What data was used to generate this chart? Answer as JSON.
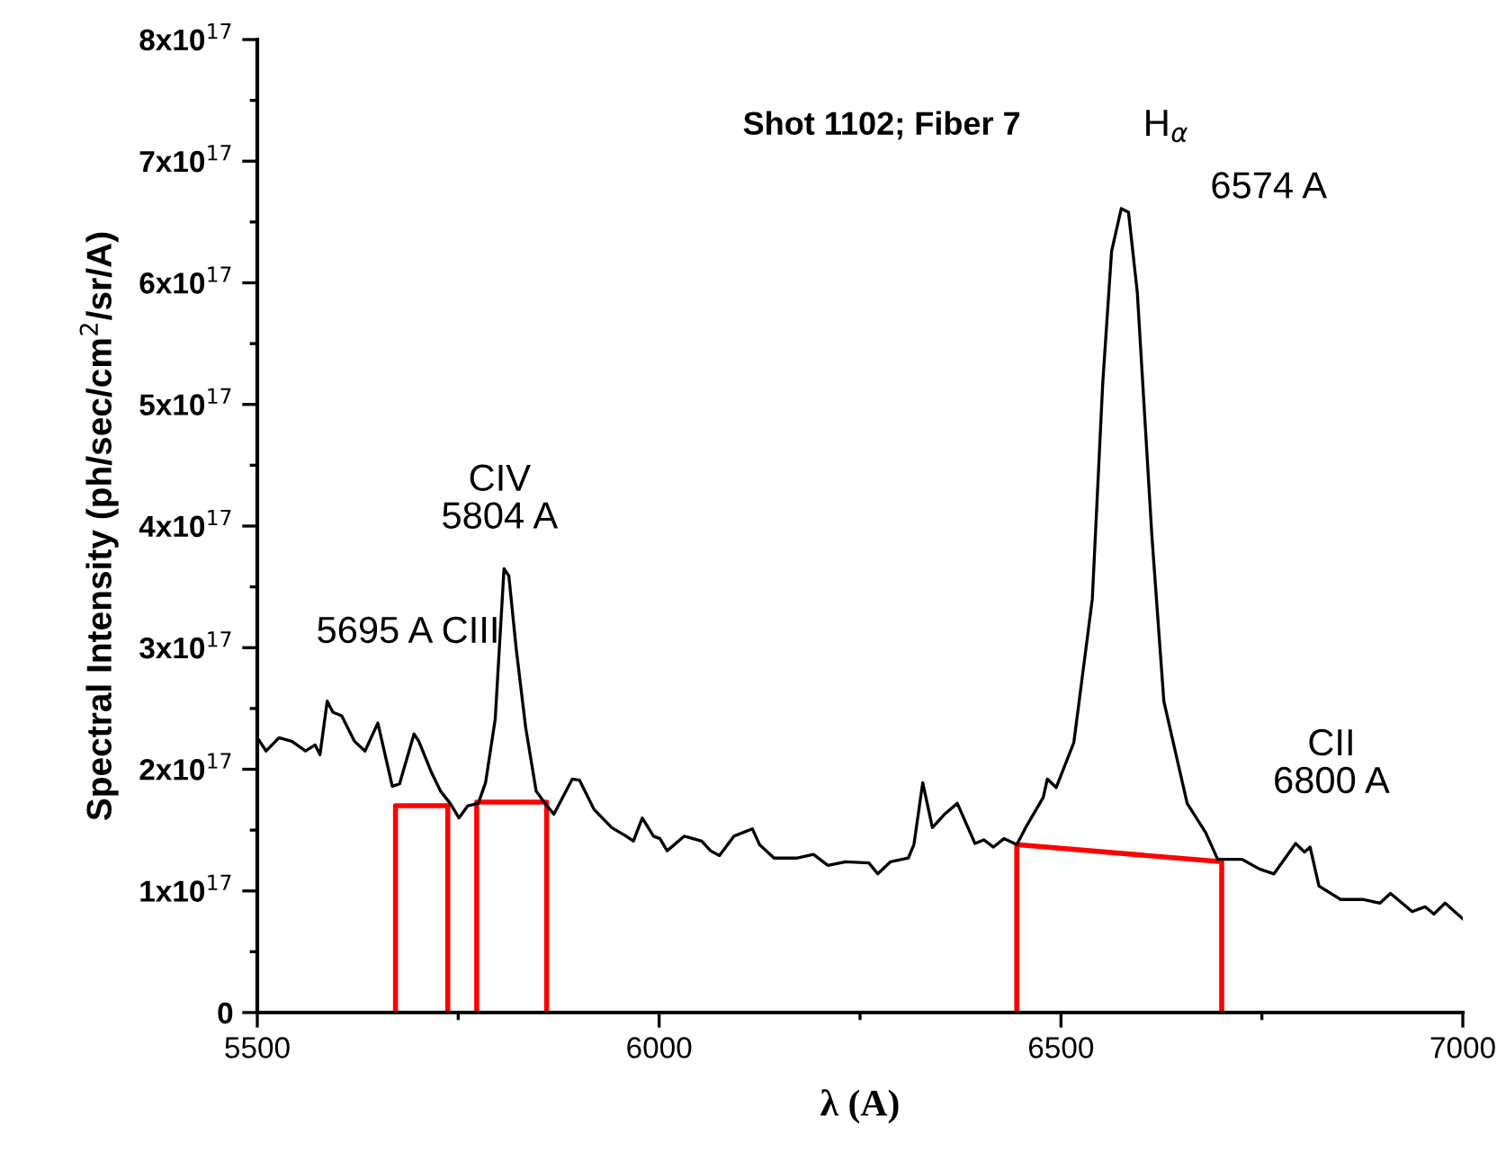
{
  "chart_data": {
    "type": "line",
    "xlabel": "λ (A)",
    "ylabel": "Spectral Intensity (ph/sec/cm$^{2}$/sr/A)",
    "xlim": [
      5500,
      7000
    ],
    "ylim": [
      0,
      8e+17
    ],
    "xticks": [
      5500,
      {
        "value": 5750,
        "label": null
      },
      6000,
      {
        "value": 6250,
        "label": null
      },
      6500,
      {
        "value": 6750,
        "label": null
      },
      7000
    ],
    "yticks": [
      0,
      {
        "value": 5e+16,
        "label": null
      },
      {
        "value": 1e+17,
        "label": "1x10$^{17}$"
      },
      {
        "value": 1.5e+17,
        "label": null
      },
      {
        "value": 2e+17,
        "label": "2x10$^{17}$"
      },
      {
        "value": 2.5e+17,
        "label": null
      },
      {
        "value": 3e+17,
        "label": "3x10$^{17}$"
      },
      {
        "value": 3.5e+17,
        "label": null
      },
      {
        "value": 4e+17,
        "label": "4x10$^{17}$"
      },
      {
        "value": 4.5e+17,
        "label": null
      },
      {
        "value": 5e+17,
        "label": "5x10$^{17}$"
      },
      {
        "value": 5.5e+17,
        "label": null
      },
      {
        "value": 6e+17,
        "label": "6x10$^{17}$"
      },
      {
        "value": 6.5e+17,
        "label": null
      },
      {
        "value": 7e+17,
        "label": "7x10$^{17}$"
      },
      {
        "value": 7.5e+17,
        "label": null
      },
      {
        "value": 8e+17,
        "label": "8x10$^{17}$"
      }
    ],
    "grid": false,
    "line_style": "solid",
    "marker": "none",
    "annotations": [
      "Shot 1102; Fiber 7",
      "5695 A CIII",
      "CIV\n5804 A",
      "H$_{α}$",
      "6574 A",
      "CII\n6800 A"
    ],
    "series": [
      {
        "color": "#000000",
        "x": [
          5500,
          5511,
          5527,
          5543,
          5560,
          5572,
          5578,
          5587,
          5594,
          5605,
          5621,
          5634,
          5650,
          5668,
          5677,
          5695,
          5701,
          5717,
          5728,
          5740,
          5751,
          5762,
          5775,
          5784,
          5796,
          5807,
          5813,
          5822,
          5834,
          5847,
          5858,
          5869,
          5892,
          5901,
          5919,
          5941,
          5959,
          5968,
          5979,
          5993,
          6001,
          6010,
          6031,
          6053,
          6064,
          6075,
          6093,
          6116,
          6125,
          6143,
          6172,
          6192,
          6210,
          6232,
          6261,
          6272,
          6288,
          6310,
          6317,
          6328,
          6340,
          6355,
          6371,
          6393,
          6404,
          6416,
          6429,
          6445,
          6456,
          6478,
          6483,
          6494,
          6516,
          6539,
          6552,
          6563,
          6575,
          6584,
          6595,
          6613,
          6628,
          6657,
          6680,
          6695,
          6725,
          6747,
          6765,
          6792,
          6803,
          6810,
          6821,
          6848,
          6875,
          6897,
          6910,
          6937,
          6953,
          6964,
          6978,
          7000
        ],
        "values": [
          2.26e+17,
          2.15e+17,
          2.26e+17,
          2.23e+17,
          2.15e+17,
          2.2e+17,
          2.12e+17,
          2.56e+17,
          2.47e+17,
          2.44e+17,
          2.23e+17,
          2.15e+17,
          2.38e+17,
          1.86e+17,
          1.88e+17,
          2.29e+17,
          2.23e+17,
          1.97e+17,
          1.82e+17,
          1.72e+17,
          1.6e+17,
          1.7e+17,
          1.72e+17,
          1.89e+17,
          2.41e+17,
          3.65e+17,
          3.59e+17,
          3e+17,
          2.34e+17,
          1.82e+17,
          1.72e+17,
          1.63e+17,
          1.92e+17,
          1.91e+17,
          1.67e+17,
          1.52e+17,
          1.45e+17,
          1.41e+17,
          1.6e+17,
          1.45e+17,
          1.43e+17,
          1.33e+17,
          1.45e+17,
          1.41e+17,
          1.33e+17,
          1.29e+17,
          1.45e+17,
          1.51e+17,
          1.38e+17,
          1.27e+17,
          1.27e+17,
          1.3e+17,
          1.21e+17,
          1.24e+17,
          1.23e+17,
          1.14e+17,
          1.24e+17,
          1.27e+17,
          1.38e+17,
          1.89e+17,
          1.52e+17,
          1.63e+17,
          1.72e+17,
          1.39e+17,
          1.42e+17,
          1.36e+17,
          1.43e+17,
          1.38e+17,
          1.52e+17,
          1.77e+17,
          1.92e+17,
          1.85e+17,
          2.22e+17,
          3.4e+17,
          5.18e+17,
          6.26e+17,
          6.61e+17,
          6.58e+17,
          5.92e+17,
          3.93e+17,
          2.56e+17,
          1.72e+17,
          1.48e+17,
          1.26e+17,
          1.26e+17,
          1.18e+17,
          1.14e+17,
          1.39e+17,
          1.32e+17,
          1.36e+17,
          1.04e+17,
          9.3e+16,
          9.3e+16,
          9e+16,
          9.8e+16,
          8.3e+16,
          8.7e+16,
          8.1e+16,
          9e+16,
          7.7e+16
        ]
      },
      {
        "color": "#ff0000",
        "x": [
          5672,
          5672,
          5737,
          5737
        ],
        "values": [
          0,
          1.7e+17,
          1.7e+17,
          0
        ]
      },
      {
        "color": "#ff0000",
        "x": [
          5773,
          5773,
          5860,
          5860
        ],
        "values": [
          0,
          1.73e+17,
          1.73e+17,
          0
        ]
      },
      {
        "color": "#ff0000",
        "x": [
          6445,
          6445,
          6700,
          6700
        ],
        "values": [
          0,
          1.38e+17,
          1.24e+17,
          0
        ]
      }
    ]
  }
}
